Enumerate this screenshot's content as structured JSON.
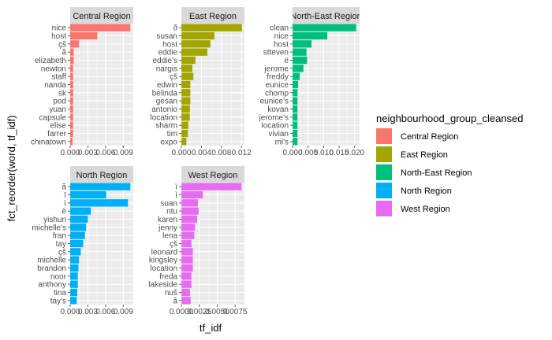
{
  "chart_data": {
    "type": "bar",
    "orientation": "horizontal",
    "xlabel": "tf_idf",
    "ylabel": "fct_reorder(word, tf_idf)",
    "legend": {
      "title": "neighbourhood_group_cleansed",
      "placement": "right",
      "entries": [
        {
          "label": "Central Region",
          "color": "#F8766D"
        },
        {
          "label": "East Region",
          "color": "#A3A500"
        },
        {
          "label": "North-East Region",
          "color": "#00BF7D"
        },
        {
          "label": "North Region",
          "color": "#00B0F6"
        },
        {
          "label": "West Region",
          "color": "#E76BF3"
        }
      ]
    },
    "grid": true,
    "panels": [
      {
        "title": "Central Region",
        "color": "#F8766D",
        "xlim": [
          0,
          0.0107
        ],
        "ticks": [
          0.0,
          0.003,
          0.006,
          0.009
        ],
        "tick_labels": [
          "0.000",
          "0.003",
          "0.006",
          "0.009"
        ],
        "categories": [
          "nice",
          "host",
          "çš",
          "ã",
          "elizabeth",
          "newton",
          "staff",
          "nanda",
          "sk",
          "pod",
          "yuan",
          "capsule",
          "elise",
          "farrer",
          "chinatown"
        ],
        "values": [
          0.0102,
          0.0046,
          0.0015,
          0.0006,
          0.0006,
          0.0005,
          0.0005,
          0.0005,
          0.0005,
          0.0005,
          0.0005,
          0.0005,
          0.0005,
          0.0005,
          0.0004
        ]
      },
      {
        "title": "East Region",
        "color": "#A3A500",
        "xlim": [
          0,
          0.0126
        ],
        "ticks": [
          0.0,
          0.004,
          0.008,
          0.012
        ],
        "tick_labels": [
          "0.000",
          "0.004",
          "0.008",
          "0.012"
        ],
        "categories": [
          "ð",
          "susan",
          "host",
          "eddie",
          "eddie's",
          "nargis",
          "çš",
          "edwin",
          "belinda",
          "gesan",
          "antonio",
          "location",
          "sharm",
          "tim",
          "expo"
        ],
        "values": [
          0.0121,
          0.0066,
          0.0058,
          0.0052,
          0.0028,
          0.0022,
          0.0024,
          0.0018,
          0.0018,
          0.0018,
          0.0017,
          0.0017,
          0.0014,
          0.0013,
          0.001
        ]
      },
      {
        "title": "North-East Region",
        "color": "#00BF7D",
        "xlim": [
          0,
          0.0216
        ],
        "ticks": [
          0.0,
          0.005,
          0.01,
          0.015,
          0.02
        ],
        "tick_labels": [
          "0.000",
          "0.005",
          "0.010",
          "0.015",
          "0.020"
        ],
        "categories": [
          "clean",
          "nice",
          "host",
          "stteven",
          "ë",
          "jerome",
          "freddy",
          "eunice",
          "chomp",
          "eunice's",
          "kovan",
          "jerome's",
          "location",
          "vivian",
          "mi's"
        ],
        "values": [
          0.0205,
          0.0112,
          0.0061,
          0.0045,
          0.0047,
          0.0035,
          0.0023,
          0.0018,
          0.0016,
          0.0016,
          0.0016,
          0.0016,
          0.0016,
          0.0016,
          0.0016
        ]
      },
      {
        "title": "North Region",
        "color": "#00B0F6",
        "xlim": [
          0,
          0.0107
        ],
        "ticks": [
          0.0,
          0.003,
          0.006,
          0.009
        ],
        "tick_labels": [
          "0.000",
          "0.003",
          "0.006",
          "0.009"
        ],
        "categories": [
          "ã",
          "ï",
          "ì",
          "ë",
          "yishun",
          "michelle's",
          "fran",
          "tay",
          "çš",
          "michelle",
          "brandon",
          "noor",
          "anthony",
          "tina",
          "tay's"
        ],
        "values": [
          0.0102,
          0.0061,
          0.0098,
          0.0035,
          0.003,
          0.0027,
          0.0025,
          0.0022,
          0.0018,
          0.0015,
          0.0014,
          0.0013,
          0.0013,
          0.0012,
          0.0011
        ]
      },
      {
        "title": "West Region",
        "color": "#E76BF3",
        "xlim": [
          0,
          0.0088
        ],
        "ticks": [
          0.0,
          0.0025,
          0.005,
          0.0075
        ],
        "tick_labels": [
          "0.0000",
          "0.0025",
          "0.0050",
          "0.0075"
        ],
        "categories": [
          "ï",
          "ì",
          "suan",
          "ntu",
          "karen",
          "jenny",
          "lena",
          "çš",
          "leonard",
          "kingsley",
          "location",
          "freda",
          "lakeside",
          "nuš",
          "ã"
        ],
        "values": [
          0.0084,
          0.003,
          0.0023,
          0.0024,
          0.0022,
          0.0019,
          0.0018,
          0.0014,
          0.0016,
          0.0016,
          0.0016,
          0.0014,
          0.0014,
          0.0012,
          0.0013
        ]
      }
    ]
  }
}
